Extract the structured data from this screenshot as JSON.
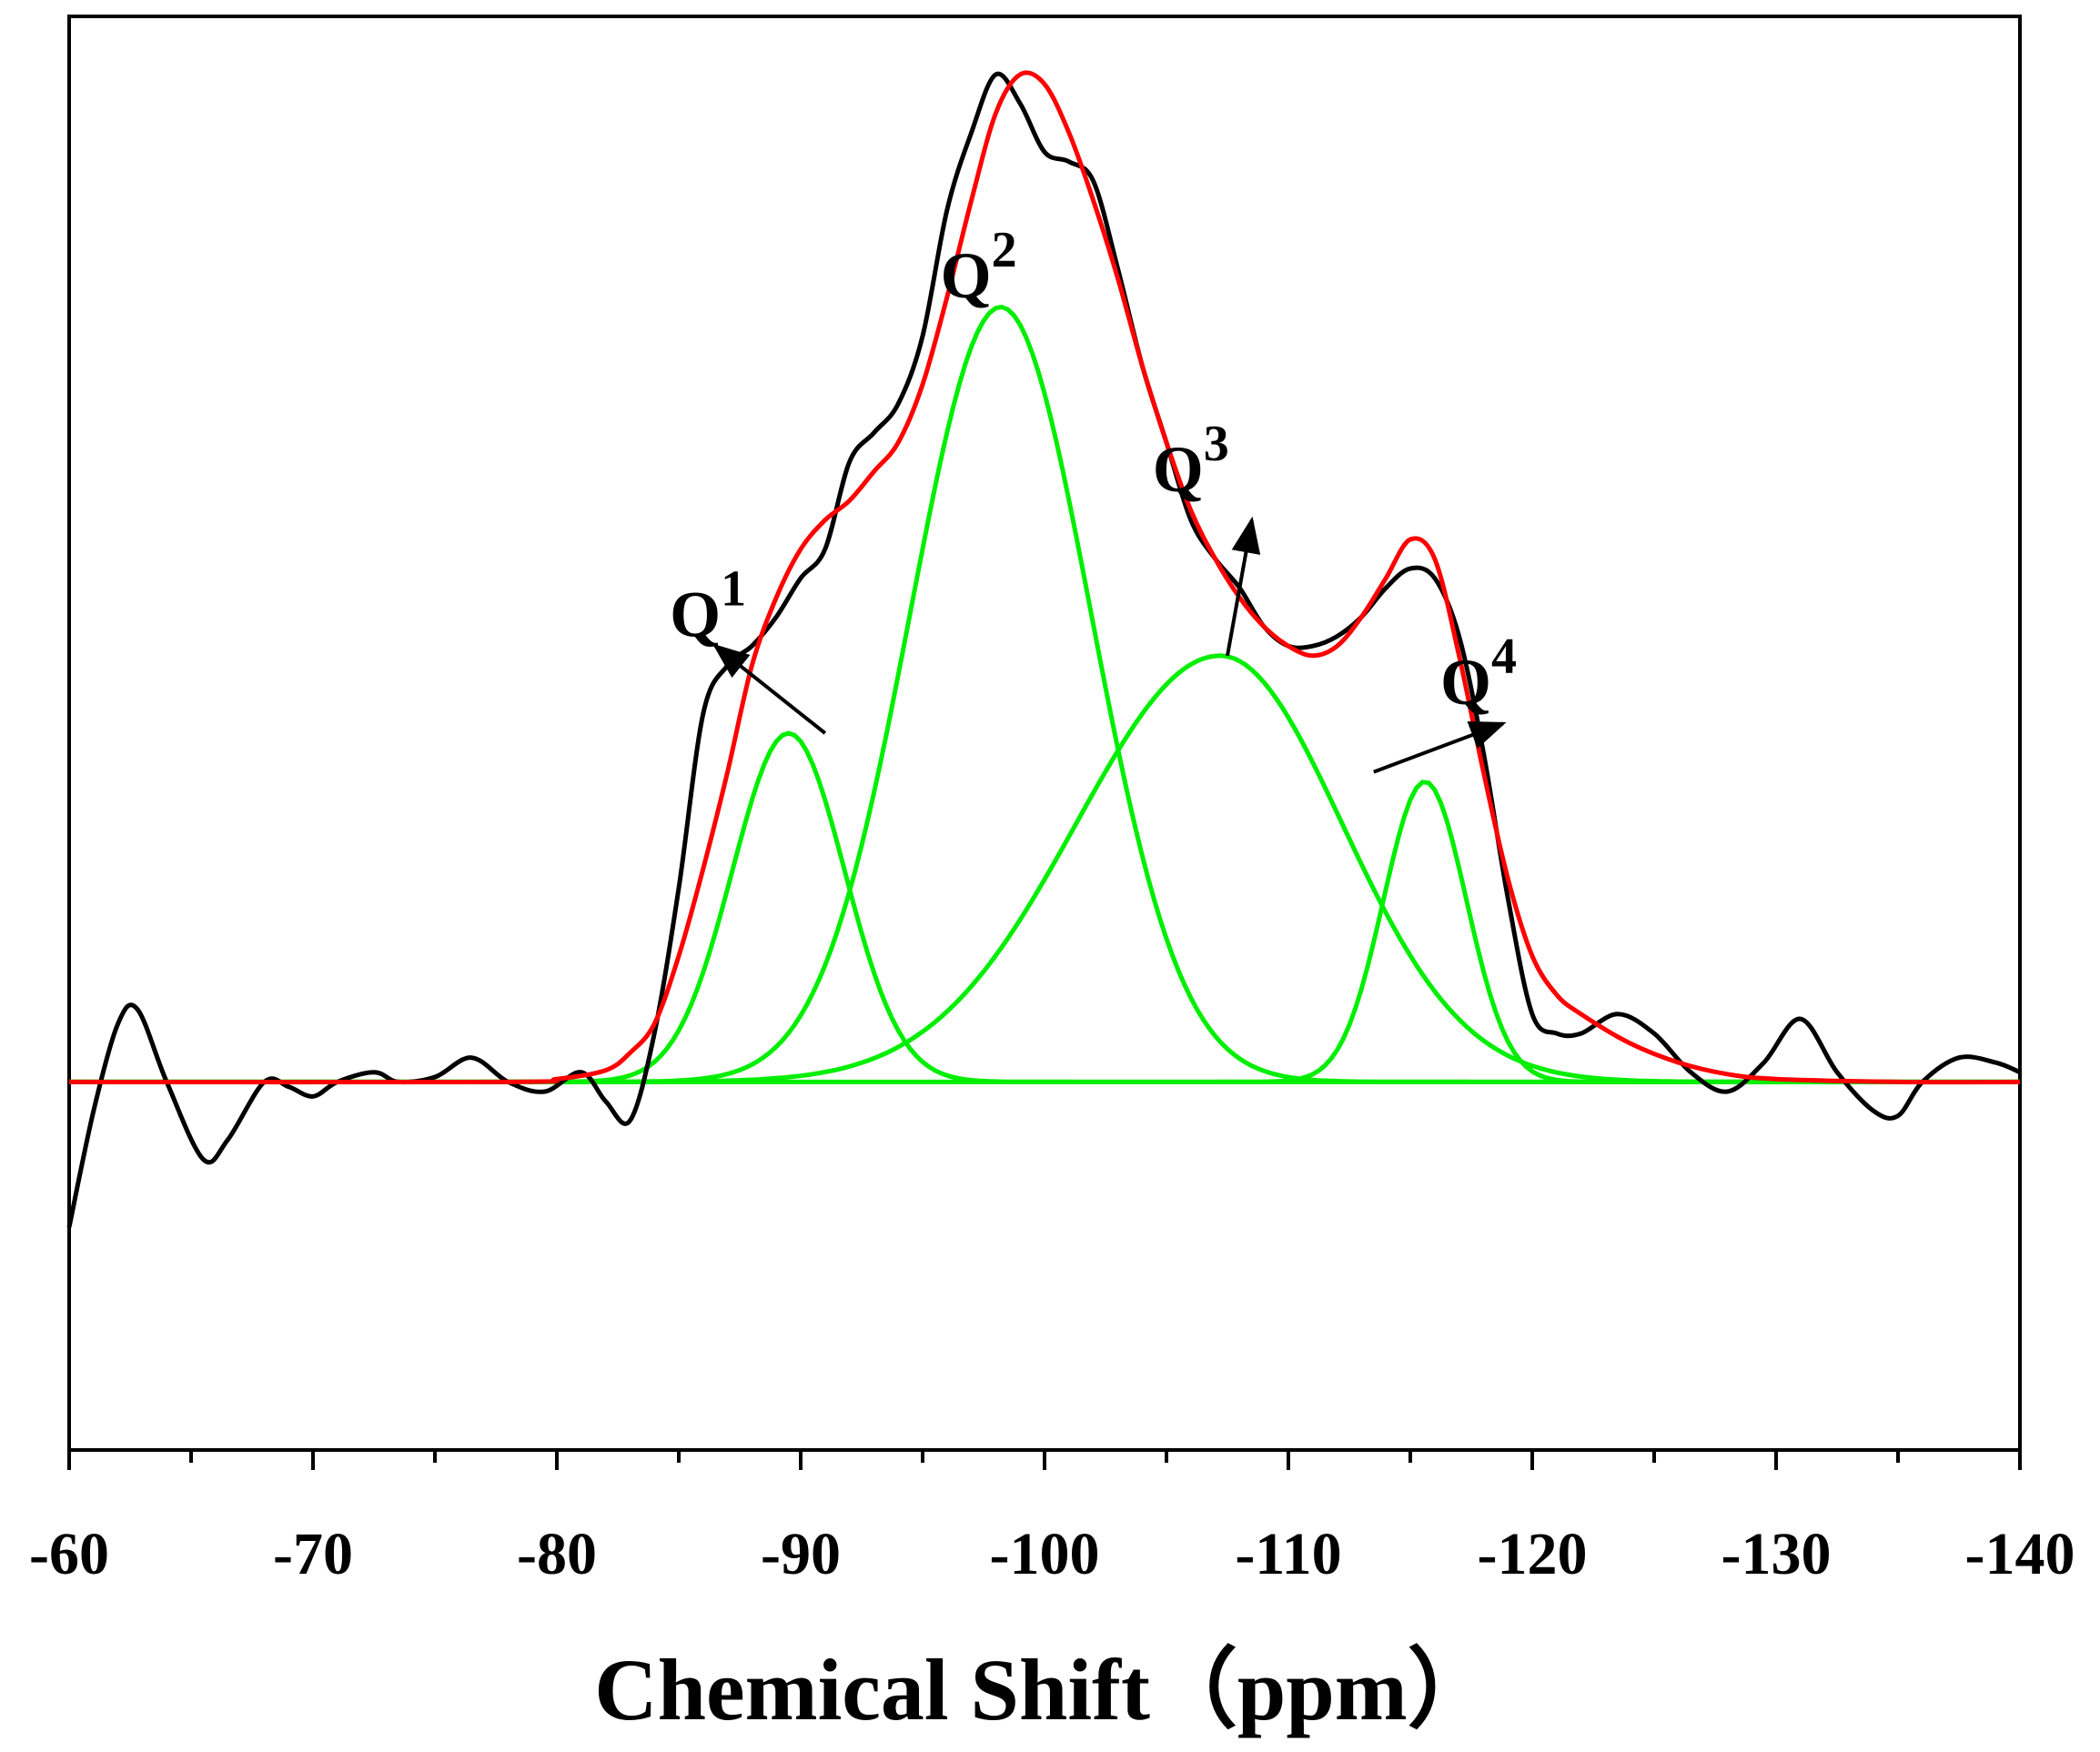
{
  "chart_data": {
    "type": "line",
    "title": "",
    "xlabel": "Chemical Shift（ppm）",
    "ylabel": "",
    "xlim": [
      -60,
      -140
    ],
    "ylim": [
      -0.38,
      1.1
    ],
    "x_ticks": [
      -60,
      -70,
      -80,
      -90,
      -100,
      -110,
      -120,
      -130,
      -140
    ],
    "x_tick_labels": [
      "-60",
      "-70",
      "-80",
      "-90",
      "-100",
      "-110",
      "-120",
      "-130",
      "-140"
    ],
    "grid": false,
    "legend": "none",
    "colors": {
      "experimental": "#000000",
      "fit": "#ff0000",
      "components": "#00ee00"
    },
    "series": [
      {
        "name": "experimental",
        "x": [
          -60,
          -61,
          -62,
          -62.8,
          -64,
          -65.5,
          -66.5,
          -68,
          -69,
          -70,
          -71,
          -72.5,
          -73.5,
          -75,
          -76.5,
          -78,
          -79.5,
          -81,
          -82,
          -83,
          -84,
          -85,
          -86,
          -87,
          -88,
          -89,
          -90,
          -91,
          -92,
          -93,
          -94,
          -95,
          -96,
          -97,
          -98,
          -99,
          -100,
          -101,
          -102,
          -103,
          -104,
          -105,
          -106,
          -107,
          -108,
          -109,
          -110,
          -111,
          -112,
          -113,
          -114,
          -115,
          -116,
          -117,
          -118,
          -119,
          -120,
          -121,
          -122,
          -123.5,
          -125,
          -126.5,
          -128,
          -129.5,
          -131,
          -132.5,
          -134,
          -135,
          -136,
          -137.5,
          -139,
          -140
        ],
        "y": [
          -0.15,
          -0.03,
          0.06,
          0.075,
          0.0,
          -0.08,
          -0.06,
          0.0,
          -0.005,
          -0.015,
          0.0,
          0.01,
          0.0,
          0.005,
          0.025,
          0.0,
          -0.01,
          0.01,
          -0.02,
          -0.04,
          0.05,
          0.2,
          0.38,
          0.43,
          0.45,
          0.48,
          0.52,
          0.55,
          0.64,
          0.67,
          0.7,
          0.77,
          0.9,
          0.98,
          1.04,
          1.01,
          0.96,
          0.95,
          0.93,
          0.84,
          0.74,
          0.66,
          0.58,
          0.54,
          0.51,
          0.47,
          0.45,
          0.45,
          0.46,
          0.48,
          0.51,
          0.53,
          0.52,
          0.46,
          0.34,
          0.19,
          0.07,
          0.05,
          0.05,
          0.07,
          0.05,
          0.01,
          -0.01,
          0.02,
          0.065,
          0.01,
          -0.03,
          -0.035,
          0.0,
          0.025,
          0.02,
          0.01
        ]
      },
      {
        "name": "fit",
        "x": [
          -60,
          -78,
          -80,
          -82,
          -83,
          -84,
          -85,
          -86,
          -87,
          -88,
          -89,
          -90,
          -91,
          -92,
          -93,
          -94,
          -95,
          -96,
          -97,
          -98,
          -99,
          -100,
          -101,
          -102,
          -103,
          -104,
          -105,
          -106,
          -107,
          -108,
          -109,
          -110,
          -111,
          -112,
          -113,
          -114,
          -115,
          -116,
          -117,
          -118,
          -119,
          -120,
          -121,
          -122,
          -124,
          -126,
          -128,
          -130,
          -135,
          -140
        ],
        "y": [
          0.0,
          0.0,
          0.003,
          0.012,
          0.03,
          0.06,
          0.13,
          0.22,
          0.32,
          0.43,
          0.5,
          0.55,
          0.58,
          0.6,
          0.63,
          0.66,
          0.72,
          0.81,
          0.91,
          1.0,
          1.04,
          1.03,
          0.98,
          0.91,
          0.83,
          0.74,
          0.66,
          0.59,
          0.54,
          0.5,
          0.47,
          0.45,
          0.44,
          0.45,
          0.48,
          0.52,
          0.56,
          0.54,
          0.44,
          0.32,
          0.21,
          0.13,
          0.09,
          0.07,
          0.04,
          0.02,
          0.008,
          0.003,
          0.0,
          0.0
        ]
      },
      {
        "name": "Q1",
        "peak": {
          "center": -89.5,
          "height": 0.36,
          "sigma": 2.3
        },
        "label": "Q",
        "superscript": "1"
      },
      {
        "name": "Q2",
        "peak": {
          "center": -98.2,
          "height": 0.8,
          "sigma": 3.7
        },
        "label": "Q",
        "superscript": "2"
      },
      {
        "name": "Q3",
        "peak": {
          "center": -107.2,
          "height": 0.44,
          "sigma_left": 5.9,
          "sigma_right": 5.0
        },
        "label": "Q",
        "superscript": "3"
      },
      {
        "name": "Q4",
        "peak": {
          "center": -115.6,
          "height": 0.31,
          "sigma": 1.7
        },
        "label": "Q",
        "superscript": "4"
      }
    ],
    "annotations": [
      {
        "target": "Q1",
        "from": [
          -91,
          0.36
        ],
        "to": [
          -86.5,
          0.45
        ]
      },
      {
        "target": "Q3",
        "from": [
          -107.5,
          0.44
        ],
        "to": [
          -108.5,
          0.58
        ]
      },
      {
        "target": "Q4",
        "from": [
          -113.5,
          0.32
        ],
        "to": [
          -118.8,
          0.37
        ]
      }
    ]
  }
}
